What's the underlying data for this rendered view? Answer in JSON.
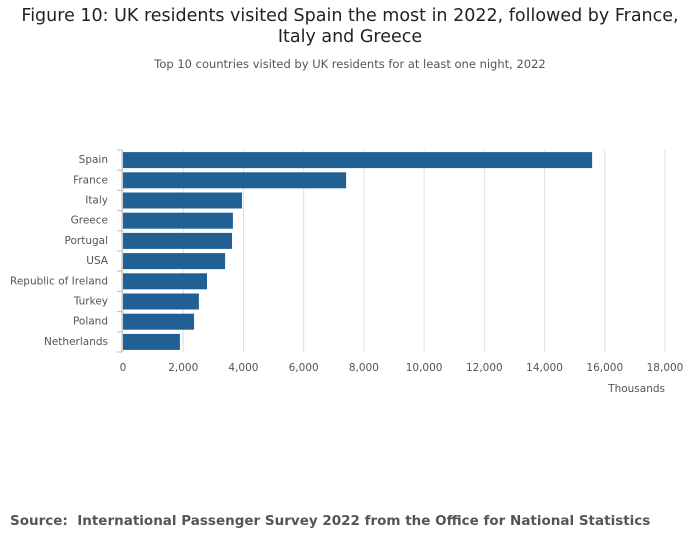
{
  "chart_data": {
    "type": "bar",
    "orientation": "horizontal",
    "title": "Figure 10: UK residents visited Spain the most in 2022, followed by France, Italy and Greece",
    "subtitle": "Top 10 countries visited by UK residents for at least one night, 2022",
    "categories": [
      "Spain",
      "France",
      "Italy",
      "Greece",
      "Portugal",
      "USA",
      "Republic of Ireland",
      "Turkey",
      "Poland",
      "Netherlands"
    ],
    "values": [
      15580,
      7410,
      3950,
      3650,
      3620,
      3390,
      2790,
      2520,
      2360,
      1890
    ],
    "color": "#206095",
    "xlim": [
      0,
      18000
    ],
    "xticks": [
      0,
      {
        "value": 2000,
        "label": "2,000"
      },
      {
        "value": 4000,
        "label": "4,000"
      },
      {
        "value": 6000,
        "label": "6,000"
      },
      {
        "value": 8000,
        "label": "8,000"
      },
      {
        "value": 10000,
        "label": "10,000"
      },
      {
        "value": 12000,
        "label": "12,000"
      },
      {
        "value": 14000,
        "label": "14,000"
      },
      {
        "value": 16000,
        "label": "16,000"
      },
      {
        "value": 18000,
        "label": "18,000"
      }
    ],
    "x_label": "Thousands",
    "grid": true,
    "source": "Source:  International Passenger Survey 2022 from the Office for National Statistics"
  }
}
